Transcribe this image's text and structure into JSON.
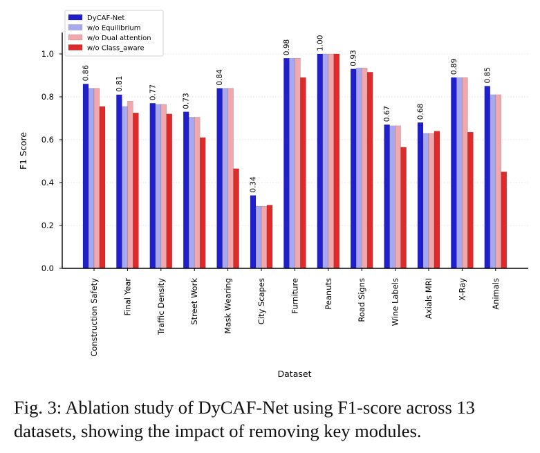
{
  "chart_data": {
    "type": "bar",
    "title": "",
    "xlabel": "Dataset",
    "ylabel": "F1 Score",
    "ylim": [
      0,
      1.1
    ],
    "yticks": [
      0.0,
      0.2,
      0.4,
      0.6,
      0.8,
      1.0
    ],
    "ytick_labels": [
      "0.0",
      "0.2",
      "0.4",
      "0.6",
      "0.8",
      "1.0"
    ],
    "grid": "horizontal dotted",
    "legend_position": "top-left",
    "categories": [
      "Construction Safety",
      "Final Year",
      "Traffic Density",
      "Street Work",
      "Mask Wearing",
      "City Scapes",
      "Furniture",
      "Peanuts",
      "Road Signs",
      "Wine Labels",
      "Axials MRI",
      "X-Ray",
      "Animals"
    ],
    "series": [
      {
        "name": "DyCAF-Net",
        "color": "#1f1fcc",
        "values": [
          0.86,
          0.81,
          0.77,
          0.73,
          0.84,
          0.34,
          0.98,
          1.0,
          0.93,
          0.67,
          0.68,
          0.89,
          0.85
        ]
      },
      {
        "name": "w/o Equilibrium",
        "color": "#a8a8f0",
        "values": [
          0.84,
          0.755,
          0.765,
          0.705,
          0.84,
          0.29,
          0.98,
          1.0,
          0.935,
          0.665,
          0.63,
          0.89,
          0.81
        ]
      },
      {
        "name": "w/o Dual attention",
        "color": "#f0a8ac",
        "values": [
          0.84,
          0.78,
          0.765,
          0.705,
          0.84,
          0.29,
          0.98,
          1.0,
          0.935,
          0.665,
          0.63,
          0.89,
          0.81
        ]
      },
      {
        "name": "w/o Class_aware",
        "color": "#dd2a2a",
        "values": [
          0.755,
          0.725,
          0.72,
          0.61,
          0.465,
          0.295,
          0.89,
          1.0,
          0.915,
          0.565,
          0.64,
          0.635,
          0.45
        ]
      }
    ],
    "data_labels": [
      "0.86",
      "0.81",
      "0.77",
      "0.73",
      "0.84",
      "0.34",
      "0.98",
      "1.00",
      "0.93",
      "0.67",
      "0.68",
      "0.89",
      "0.85"
    ]
  },
  "caption": "Fig. 3: Ablation study of DyCAF-Net using F1-score across 13 datasets, showing the impact of removing key modules."
}
